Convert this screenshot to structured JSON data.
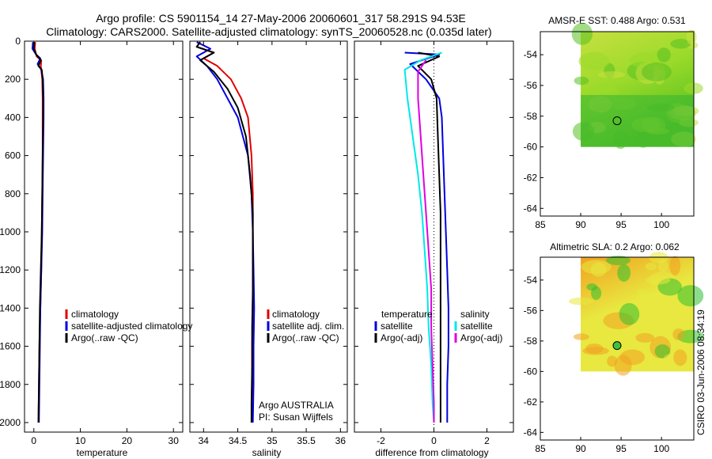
{
  "header": {
    "title_line1": "Argo profile: CS 5901154_14 27-May-2006 20060601_317 58.291S 94.53E",
    "title_line2": "Climatology: CARS2000. Satellite-adjusted climatology: synTS_20060528.nc (0.035d later)"
  },
  "footer": {
    "credit": "CSIRO 03-Jun-2006 08:34:19",
    "institution": "Argo AUSTRALIA",
    "pi": "PI: Susan Wijffels"
  },
  "colors": {
    "climatology": "#e00000",
    "satellite": "#0000e0",
    "argo": "#000000",
    "satellite_salinity": "#00e8e8",
    "argo_adj_salinity": "#e000e0"
  },
  "chart_data": [
    {
      "type": "line",
      "id": "temperature",
      "title": "",
      "xlabel": "temperature",
      "ylabel": "",
      "xlim": [
        -2,
        32
      ],
      "ylim": [
        2050,
        0
      ],
      "xticks": [
        0,
        10,
        20,
        30
      ],
      "yticks": [
        0,
        200,
        400,
        600,
        800,
        1000,
        1200,
        1400,
        1600,
        1800,
        2000
      ],
      "legend_position": "lower-right",
      "legend": [
        "climatology",
        "satellite-adjusted climatology",
        "Argo(..raw -QC)"
      ],
      "series": [
        {
          "name": "climatology",
          "color_key": "climatology",
          "points": [
            [
              0.3,
              5
            ],
            [
              0.2,
              40
            ],
            [
              0.6,
              80
            ],
            [
              1.6,
              100
            ],
            [
              1.5,
              130
            ],
            [
              1.8,
              200
            ],
            [
              1.9,
              300
            ],
            [
              1.9,
              400
            ],
            [
              1.9,
              600
            ],
            [
              1.8,
              800
            ],
            [
              1.7,
              1000
            ],
            [
              1.6,
              1200
            ],
            [
              1.4,
              1400
            ],
            [
              1.2,
              1600
            ],
            [
              1.1,
              1800
            ],
            [
              1.0,
              2000
            ]
          ]
        },
        {
          "name": "satellite-adjusted climatology",
          "color_key": "satellite",
          "points": [
            [
              -0.2,
              5
            ],
            [
              -0.3,
              40
            ],
            [
              0.5,
              70
            ],
            [
              1.4,
              90
            ],
            [
              0.8,
              120
            ],
            [
              1.6,
              150
            ],
            [
              2.0,
              200
            ],
            [
              2.1,
              300
            ],
            [
              2.1,
              400
            ],
            [
              2.0,
              600
            ],
            [
              1.9,
              800
            ],
            [
              1.8,
              1000
            ],
            [
              1.6,
              1200
            ],
            [
              1.4,
              1400
            ],
            [
              1.3,
              1600
            ],
            [
              1.2,
              1800
            ],
            [
              1.1,
              2000
            ]
          ]
        },
        {
          "name": "Argo(..raw -QC)",
          "color_key": "argo",
          "points": [
            [
              0.1,
              5
            ],
            [
              0.0,
              40
            ],
            [
              0.5,
              70
            ],
            [
              1.5,
              100
            ],
            [
              1.0,
              130
            ],
            [
              1.7,
              150
            ],
            [
              1.9,
              200
            ],
            [
              2.0,
              300
            ],
            [
              2.0,
              400
            ],
            [
              1.9,
              600
            ],
            [
              1.8,
              800
            ],
            [
              1.7,
              1000
            ],
            [
              1.5,
              1200
            ],
            [
              1.3,
              1400
            ],
            [
              1.2,
              1600
            ],
            [
              1.1,
              1800
            ],
            [
              1.0,
              2000
            ]
          ]
        }
      ]
    },
    {
      "type": "line",
      "id": "salinity",
      "title": "",
      "xlabel": "salinity",
      "ylabel": "",
      "xlim": [
        33.8,
        36.1
      ],
      "ylim": [
        2050,
        0
      ],
      "xticks": [
        34,
        34.5,
        35,
        35.5,
        36
      ],
      "yticks": [],
      "legend_position": "lower-right",
      "legend": [
        "climatology",
        "satellite adj. clim.",
        "Argo(..raw -QC)"
      ],
      "series": [
        {
          "name": "climatology",
          "color_key": "climatology",
          "points": [
            [
              33.95,
              5
            ],
            [
              33.9,
              30
            ],
            [
              34.15,
              60
            ],
            [
              34.0,
              90
            ],
            [
              34.2,
              130
            ],
            [
              34.4,
              200
            ],
            [
              34.55,
              300
            ],
            [
              34.65,
              400
            ],
            [
              34.7,
              600
            ],
            [
              34.72,
              800
            ],
            [
              34.72,
              1000
            ],
            [
              34.72,
              1200
            ],
            [
              34.72,
              1400
            ],
            [
              34.71,
              1600
            ],
            [
              34.71,
              1800
            ],
            [
              34.7,
              2000
            ]
          ]
        },
        {
          "name": "satellite adj. clim.",
          "color_key": "satellite",
          "points": [
            [
              33.9,
              5
            ],
            [
              34.1,
              40
            ],
            [
              33.9,
              80
            ],
            [
              34.05,
              130
            ],
            [
              34.2,
              200
            ],
            [
              34.35,
              300
            ],
            [
              34.5,
              400
            ],
            [
              34.65,
              600
            ],
            [
              34.7,
              800
            ],
            [
              34.72,
              1000
            ],
            [
              34.73,
              1200
            ],
            [
              34.74,
              1400
            ],
            [
              34.73,
              1600
            ],
            [
              34.73,
              1800
            ],
            [
              34.72,
              2000
            ]
          ]
        },
        {
          "name": "Argo(..raw -QC)",
          "color_key": "argo",
          "points": [
            [
              33.95,
              5
            ],
            [
              33.9,
              30
            ],
            [
              34.15,
              60
            ],
            [
              33.95,
              100
            ],
            [
              34.15,
              160
            ],
            [
              34.35,
              250
            ],
            [
              34.5,
              350
            ],
            [
              34.62,
              500
            ],
            [
              34.68,
              700
            ],
            [
              34.72,
              900
            ],
            [
              34.72,
              1100
            ],
            [
              34.72,
              1300
            ],
            [
              34.71,
              1500
            ],
            [
              34.71,
              1700
            ],
            [
              34.7,
              1900
            ],
            [
              34.7,
              2000
            ]
          ]
        }
      ]
    },
    {
      "type": "line",
      "id": "difference",
      "title": "",
      "xlabel": "difference from climatology",
      "ylabel": "",
      "xlim": [
        -3,
        3
      ],
      "ylim": [
        2050,
        0
      ],
      "xticks": [
        -2,
        0,
        2
      ],
      "yticks": [],
      "legend_position": "lower-right",
      "legend_headers": [
        "temperature",
        "salinity"
      ],
      "legend": [
        "satellite",
        "Argo(-adj)",
        "satellite",
        "Argo(-adj)"
      ],
      "series": [
        {
          "name": "temperature satellite",
          "color_key": "satellite",
          "points": [
            [
              -1.1,
              60
            ],
            [
              0.2,
              70
            ],
            [
              -0.9,
              120
            ],
            [
              -0.3,
              200
            ],
            [
              0.2,
              300
            ],
            [
              0.3,
              400
            ],
            [
              0.35,
              600
            ],
            [
              0.4,
              800
            ],
            [
              0.45,
              1000
            ],
            [
              0.5,
              1200
            ],
            [
              0.55,
              1400
            ],
            [
              0.55,
              1600
            ],
            [
              0.5,
              1800
            ],
            [
              0.5,
              2000
            ]
          ]
        },
        {
          "name": "temperature Argo(-adj)",
          "color_key": "argo",
          "points": [
            [
              -0.6,
              60
            ],
            [
              0.2,
              80
            ],
            [
              -0.6,
              130
            ],
            [
              -0.1,
              200
            ],
            [
              0.1,
              300
            ],
            [
              0.15,
              500
            ],
            [
              0.2,
              700
            ],
            [
              0.25,
              900
            ],
            [
              0.25,
              1100
            ],
            [
              0.25,
              1300
            ],
            [
              0.25,
              1500
            ],
            [
              0.25,
              1700
            ],
            [
              0.25,
              1900
            ],
            [
              0.25,
              2000
            ]
          ]
        },
        {
          "name": "salinity satellite",
          "color_key": "satellite_salinity",
          "points": [
            [
              0.3,
              60
            ],
            [
              -0.5,
              100
            ],
            [
              -1.1,
              150
            ],
            [
              -1.0,
              300
            ],
            [
              -0.8,
              500
            ],
            [
              -0.6,
              700
            ],
            [
              -0.45,
              900
            ],
            [
              -0.35,
              1100
            ],
            [
              -0.25,
              1300
            ],
            [
              -0.2,
              1500
            ],
            [
              -0.1,
              1700
            ],
            [
              -0.05,
              1900
            ],
            [
              0.0,
              2000
            ]
          ]
        },
        {
          "name": "salinity Argo(-adj)",
          "color_key": "argo_adj_salinity",
          "points": [
            [
              -0.3,
              100
            ],
            [
              -0.6,
              160
            ],
            [
              -0.6,
              300
            ],
            [
              -0.5,
              500
            ],
            [
              -0.4,
              700
            ],
            [
              -0.3,
              900
            ],
            [
              -0.2,
              1100
            ],
            [
              -0.1,
              1300
            ],
            [
              -0.1,
              1500
            ],
            [
              -0.05,
              1700
            ],
            [
              0.0,
              1900
            ],
            [
              0.0,
              2000
            ]
          ]
        }
      ]
    },
    {
      "type": "heatmap",
      "id": "sst_map",
      "title": "AMSR-E SST: 0.488 Argo: 0.531",
      "xlim": [
        85,
        104
      ],
      "ylim": [
        -64.5,
        -52.5
      ],
      "xticks": [
        85,
        90,
        95,
        100
      ],
      "yticks": [
        -54,
        -56,
        -58,
        -60,
        -62,
        -64
      ],
      "field_extent": {
        "lon": [
          90,
          104
        ],
        "lat": [
          -60,
          -52.5
        ]
      },
      "profile_marker": {
        "lon": 94.5,
        "lat": -58.3
      },
      "palette": [
        "#58c020",
        "#9ada2a",
        "#c8e040"
      ]
    },
    {
      "type": "heatmap",
      "id": "sla_map",
      "title": "Altimetric SLA: 0.2 Argo: 0.062",
      "xlim": [
        85,
        104
      ],
      "ylim": [
        -64.5,
        -52.5
      ],
      "xticks": [
        85,
        90,
        95,
        100
      ],
      "yticks": [
        -54,
        -56,
        -58,
        -60,
        -62,
        -64
      ],
      "field_extent": {
        "lon": [
          90,
          104
        ],
        "lat": [
          -60,
          -52.5
        ]
      },
      "profile_marker": {
        "lon": 94.5,
        "lat": -58.3
      },
      "palette": [
        "#30c030",
        "#e8e840",
        "#f0a020"
      ]
    }
  ]
}
